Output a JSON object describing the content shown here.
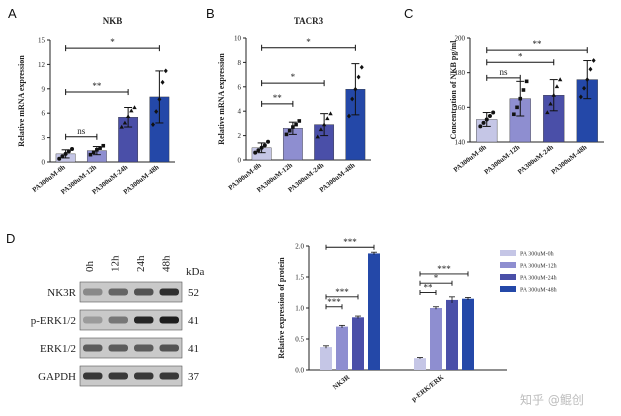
{
  "panels": [
    "A",
    "B",
    "C",
    "D"
  ],
  "colors": [
    "#c5c6e6",
    "#8e8ed0",
    "#4a4fa8",
    "#2448a8"
  ],
  "watermark": "知乎 @鲲创",
  "chart_data": [
    {
      "id": "A",
      "type": "bar",
      "title": "NKB",
      "ylabel": "Relative mRNA expression",
      "categories": [
        "PA300uM-0h",
        "PA300uM-12h",
        "PA300uM-24h",
        "PA300uM-48h"
      ],
      "values": [
        1.0,
        1.4,
        5.5,
        8.0
      ],
      "errors": [
        0.5,
        0.5,
        1.2,
        3.2
      ],
      "points": [
        [
          0.4,
          0.7,
          1.0,
          1.3,
          1.6
        ],
        [
          0.9,
          1.2,
          1.5,
          1.7,
          2.0
        ],
        [
          4.3,
          4.8,
          5.6,
          6.3,
          6.7
        ],
        [
          4.6,
          6.2,
          7.7,
          9.8,
          11.2
        ]
      ],
      "ylim": [
        0,
        15
      ],
      "yticks": [
        0,
        3,
        6,
        9,
        12,
        15
      ],
      "sig": [
        {
          "from": 0,
          "to": 1,
          "label": "ns",
          "y": 3.1
        },
        {
          "from": 0,
          "to": 2,
          "label": "**",
          "y": 8.6
        },
        {
          "from": 0,
          "to": 3,
          "label": "*",
          "y": 14.0
        }
      ]
    },
    {
      "id": "B",
      "type": "bar",
      "title": "TACR3",
      "ylabel": "Relative mRNA expression",
      "categories": [
        "PA300uM-0h",
        "PA300uM-12h",
        "PA300uM-24h",
        "PA300uM-48h"
      ],
      "values": [
        1.0,
        2.6,
        2.9,
        5.8
      ],
      "errors": [
        0.4,
        0.5,
        0.9,
        2.1
      ],
      "points": [
        [
          0.6,
          0.8,
          1.0,
          1.2,
          1.5
        ],
        [
          2.1,
          2.4,
          2.7,
          2.9,
          3.2
        ],
        [
          1.9,
          2.5,
          2.9,
          3.4,
          3.8
        ],
        [
          3.6,
          5.0,
          5.8,
          6.8,
          7.6
        ]
      ],
      "ylim": [
        0,
        10
      ],
      "yticks": [
        0,
        2,
        4,
        6,
        8,
        10
      ],
      "sig": [
        {
          "from": 0,
          "to": 1,
          "label": "**",
          "y": 4.6
        },
        {
          "from": 0,
          "to": 2,
          "label": "*",
          "y": 6.3
        },
        {
          "from": 0,
          "to": 3,
          "label": "*",
          "y": 9.2
        }
      ]
    },
    {
      "id": "C",
      "type": "bar",
      "ylabel": "Concentration of NKB  pg/ml",
      "categories": [
        "PA300uM-0h",
        "PA300uM-12h",
        "PA300uM-24h",
        "PA300uM-48h"
      ],
      "values": [
        153,
        165,
        167,
        176
      ],
      "errors": [
        4,
        10,
        9,
        11
      ],
      "points": [
        [
          149,
          151,
          153,
          155,
          157
        ],
        [
          156,
          160,
          165,
          170,
          175
        ],
        [
          157,
          162,
          167,
          172,
          176
        ],
        [
          166,
          171,
          176,
          182,
          187
        ]
      ],
      "ylim": [
        140,
        200
      ],
      "yticks": [
        140,
        160,
        180,
        200
      ],
      "sig": [
        {
          "from": 0,
          "to": 1,
          "label": "ns",
          "y": 177
        },
        {
          "from": 0,
          "to": 2,
          "label": "*",
          "y": 186
        },
        {
          "from": 0,
          "to": 3,
          "label": "**",
          "y": 193
        }
      ]
    },
    {
      "id": "D",
      "type": "bar",
      "ylabel": "Relative expression of protein",
      "groups": [
        "NK3R",
        "p-ERK/ERK"
      ],
      "series": [
        {
          "name": "PA 300uM-0h",
          "values": [
            0.37,
            0.19
          ],
          "errors": [
            0.02,
            0.01
          ]
        },
        {
          "name": "PA 300uM-12h",
          "values": [
            0.7,
            1.0
          ],
          "errors": [
            0.02,
            0.02
          ]
        },
        {
          "name": "PA 300uM-24h",
          "values": [
            0.85,
            1.13
          ],
          "errors": [
            0.02,
            0.05
          ]
        },
        {
          "name": "PA 300uM-48h",
          "values": [
            1.88,
            1.15
          ],
          "errors": [
            0.02,
            0.02
          ]
        }
      ],
      "ylim": [
        0,
        2
      ],
      "yticks": [
        0,
        0.5,
        1,
        1.5,
        2
      ],
      "ytick_labels": [
        "0.0",
        "0.5",
        "1.0",
        "1.5",
        "2.0"
      ],
      "legend": "top-right",
      "sig": [
        {
          "group": 0,
          "from": 0,
          "to": 1,
          "label": "***",
          "y": 1.02
        },
        {
          "group": 0,
          "from": 0,
          "to": 2,
          "label": "***",
          "y": 1.18
        },
        {
          "group": 0,
          "from": 0,
          "to": 3,
          "label": "***",
          "y": 1.98
        },
        {
          "group": 1,
          "from": 0,
          "to": 1,
          "label": "**",
          "y": 1.25
        },
        {
          "group": 1,
          "from": 0,
          "to": 2,
          "label": "*",
          "y": 1.4
        },
        {
          "group": 1,
          "from": 0,
          "to": 3,
          "label": "***",
          "y": 1.55
        }
      ]
    }
  ],
  "blot": {
    "times": [
      "0h",
      "12h",
      "24h",
      "48h"
    ],
    "kda_label": "kDa",
    "rows": [
      {
        "name": "NK3R",
        "kda": "52",
        "intensity": [
          0.35,
          0.55,
          0.65,
          0.85
        ]
      },
      {
        "name": "p-ERK1/2",
        "kda": "41",
        "intensity": [
          0.25,
          0.45,
          0.9,
          0.95
        ]
      },
      {
        "name": "ERK1/2",
        "kda": "41",
        "intensity": [
          0.6,
          0.6,
          0.6,
          0.65
        ]
      },
      {
        "name": "GAPDH",
        "kda": "37",
        "intensity": [
          0.8,
          0.8,
          0.8,
          0.8
        ]
      }
    ]
  }
}
